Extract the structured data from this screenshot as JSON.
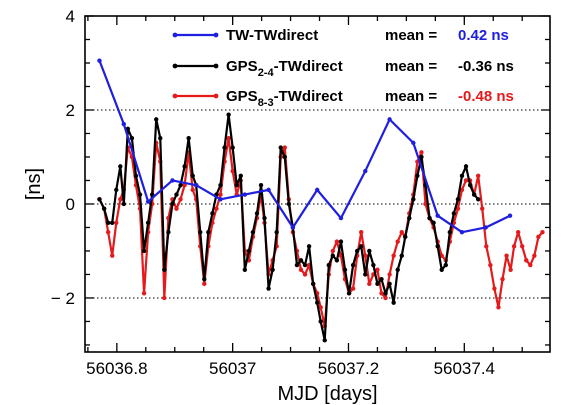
{
  "chart_data": {
    "type": "line",
    "title": "",
    "xlabel": "MJD [days]",
    "ylabel": "[ns]",
    "xlim": [
      56036.745,
      56037.548
    ],
    "ylim": [
      -3.15,
      4.0
    ],
    "x_ticks": [
      56036.8,
      56037,
      56037.2,
      56037.4
    ],
    "x_tick_labels": [
      "56036.8",
      "56037",
      "56037.2",
      "56037.4"
    ],
    "y_ticks": [
      -2,
      0,
      2,
      4
    ],
    "y_tick_labels": [
      "− 2",
      "0",
      "2",
      "4"
    ],
    "grid": "dotted horizontal lines at y = -2, 0, 2",
    "legend_position": "top-right",
    "series": [
      {
        "name": "TW-TWdirect",
        "label_main": "TW-TWdirect",
        "label_sub": "",
        "label_suffix": "",
        "mean_label": "mean =",
        "mean_value": "0.42 ns",
        "color": "#1f1fe0",
        "x": [
          56036.77,
          56036.812,
          56036.854,
          56036.896,
          56036.937,
          56036.979,
          56037.021,
          56037.062,
          56037.104,
          56037.146,
          56037.187,
          56037.229,
          56037.271,
          56037.312,
          56037.354,
          56037.396,
          56037.437,
          56037.479
        ],
        "y": [
          3.05,
          1.7,
          0.05,
          0.5,
          0.4,
          0.1,
          0.2,
          0.3,
          -0.5,
          0.3,
          -0.3,
          0.7,
          1.8,
          1.3,
          -0.25,
          -0.6,
          -0.5,
          -0.25
        ]
      },
      {
        "name": "GPS2-4-TWdirect",
        "label_main": "GPS",
        "label_sub": "2-4",
        "label_suffix": "-TWdirect",
        "mean_label": "mean =",
        "mean_value": "-0.36 ns",
        "color": "#000000",
        "x": [
          56036.77,
          56036.778,
          56036.785,
          56036.792,
          56036.799,
          56036.806,
          56036.812,
          56036.819,
          56036.826,
          56036.833,
          56036.84,
          56036.847,
          56036.854,
          56036.861,
          56036.868,
          56036.875,
          56036.882,
          56036.889,
          56036.896,
          56036.903,
          56036.91,
          56036.917,
          56036.924,
          56036.931,
          56036.937,
          56036.944,
          56036.951,
          56036.958,
          56036.965,
          56036.972,
          56036.979,
          56036.986,
          56036.993,
          56037.0,
          56037.007,
          56037.014,
          56037.021,
          56037.028,
          56037.035,
          56037.042,
          56037.049,
          56037.055,
          56037.062,
          56037.069,
          56037.076,
          56037.083,
          56037.09,
          56037.097,
          56037.104,
          56037.111,
          56037.118,
          56037.125,
          56037.132,
          56037.139,
          56037.146,
          56037.152,
          56037.159,
          56037.166,
          56037.173,
          56037.18,
          56037.187,
          56037.194,
          56037.201,
          56037.208,
          56037.215,
          56037.222,
          56037.229,
          56037.236,
          56037.243,
          56037.25,
          56037.257,
          56037.264,
          56037.271,
          56037.278,
          56037.285,
          56037.292,
          56037.298,
          56037.305,
          56037.312,
          56037.319,
          56037.326,
          56037.333,
          56037.34,
          56037.347,
          56037.354,
          56037.361,
          56037.368,
          56037.375,
          56037.382,
          56037.389,
          56037.396,
          56037.403,
          56037.41,
          56037.417,
          56037.424
        ],
        "y": [
          0.1,
          -0.1,
          -0.4,
          -0.4,
          0.3,
          0.8,
          0.0,
          1.6,
          1.4,
          0.6,
          0.2,
          -1.0,
          -0.4,
          0.2,
          1.8,
          1.4,
          -1.4,
          -0.6,
          0.0,
          0.2,
          0.4,
          0.8,
          1.4,
          0.6,
          0.4,
          -0.6,
          -1.6,
          -0.6,
          -0.2,
          0.2,
          0.4,
          1.2,
          1.9,
          1.2,
          0.4,
          0.6,
          -1.4,
          -1.0,
          -0.6,
          -0.2,
          0.4,
          -0.3,
          -1.8,
          -1.4,
          -0.6,
          1.2,
          1.0,
          0.0,
          -0.5,
          -1.3,
          -1.2,
          -1.3,
          -0.9,
          -1.7,
          -2.1,
          -2.5,
          -2.9,
          -1.3,
          -1.1,
          -1.2,
          -0.8,
          -1.4,
          -1.9,
          -1.3,
          -1.0,
          -0.9,
          -1.5,
          -1.0,
          -1.3,
          -1.7,
          -1.6,
          -1.9,
          -1.7,
          -2.1,
          -1.4,
          -1.1,
          -0.7,
          -0.3,
          0.1,
          0.6,
          1.0,
          0.4,
          -0.3,
          -0.4,
          -0.9,
          -1.4,
          -1.3,
          -0.6,
          -0.2,
          0.1,
          0.6,
          0.8,
          0.4,
          0.2,
          0.1
        ]
      },
      {
        "name": "GPS8-3-TWdirect",
        "label_main": "GPS",
        "label_sub": "8-3",
        "label_suffix": "-TWdirect",
        "mean_label": "mean =",
        "mean_value": "-0.48 ns",
        "color": "#e41a1c",
        "x": [
          56036.77,
          56036.778,
          56036.785,
          56036.792,
          56036.799,
          56036.806,
          56036.812,
          56036.819,
          56036.826,
          56036.833,
          56036.84,
          56036.847,
          56036.854,
          56036.861,
          56036.868,
          56036.875,
          56036.882,
          56036.889,
          56036.896,
          56036.903,
          56036.91,
          56036.917,
          56036.924,
          56036.931,
          56036.937,
          56036.944,
          56036.951,
          56036.958,
          56036.965,
          56036.972,
          56036.979,
          56036.986,
          56036.993,
          56037.0,
          56037.007,
          56037.014,
          56037.021,
          56037.028,
          56037.035,
          56037.042,
          56037.049,
          56037.055,
          56037.062,
          56037.069,
          56037.076,
          56037.083,
          56037.09,
          56037.097,
          56037.104,
          56037.111,
          56037.118,
          56037.125,
          56037.132,
          56037.139,
          56037.146,
          56037.152,
          56037.159,
          56037.166,
          56037.173,
          56037.18,
          56037.187,
          56037.194,
          56037.201,
          56037.208,
          56037.215,
          56037.222,
          56037.229,
          56037.236,
          56037.243,
          56037.25,
          56037.257,
          56037.264,
          56037.271,
          56037.278,
          56037.285,
          56037.292,
          56037.298,
          56037.305,
          56037.312,
          56037.319,
          56037.326,
          56037.333,
          56037.34,
          56037.347,
          56037.354,
          56037.361,
          56037.368,
          56037.375,
          56037.382,
          56037.389,
          56037.396,
          56037.403,
          56037.41,
          56037.417,
          56037.424,
          56037.431,
          56037.438,
          56037.445,
          56037.452,
          56037.459,
          56037.466,
          56037.473,
          56037.48,
          56037.486,
          56037.493,
          56037.5,
          56037.507,
          56037.514,
          56037.521,
          56037.528,
          56037.535
        ],
        "y": [
          0.1,
          -0.1,
          -0.6,
          -1.1,
          -0.4,
          0.1,
          0.3,
          1.2,
          1.0,
          0.4,
          -0.1,
          -1.9,
          -0.6,
          0.0,
          1.3,
          0.9,
          -2.0,
          -0.3,
          0.1,
          -0.1,
          0.1,
          0.4,
          1.1,
          0.3,
          0.1,
          -0.9,
          -1.7,
          -0.9,
          -0.4,
          -0.1,
          0.2,
          0.9,
          1.4,
          0.7,
          0.2,
          0.5,
          -1.0,
          -1.2,
          -0.7,
          -0.3,
          0.2,
          -0.4,
          -1.5,
          -1.2,
          -0.9,
          1.0,
          1.2,
          0.1,
          -0.6,
          -1.0,
          -1.4,
          -1.5,
          -1.3,
          -1.7,
          -1.9,
          -2.2,
          -2.6,
          -1.5,
          -1.0,
          -0.8,
          -1.1,
          -1.6,
          -1.9,
          -1.8,
          -1.1,
          -0.6,
          -1.1,
          -1.7,
          -1.5,
          -1.4,
          -1.9,
          -2.0,
          -1.5,
          -1.1,
          -0.8,
          -0.6,
          -0.7,
          -0.2,
          0.2,
          0.9,
          1.1,
          0.0,
          -0.3,
          -0.5,
          -0.8,
          -1.1,
          -1.2,
          -0.8,
          -0.4,
          -0.1,
          0.3,
          0.5,
          0.5,
          0.2,
          0.6,
          -0.1,
          -0.9,
          -1.3,
          -1.8,
          -2.2,
          -1.6,
          -1.1,
          -1.4,
          -0.9,
          -0.6,
          -0.9,
          -1.2,
          -1.3,
          -1.1,
          -0.7,
          -0.6
        ]
      }
    ]
  }
}
